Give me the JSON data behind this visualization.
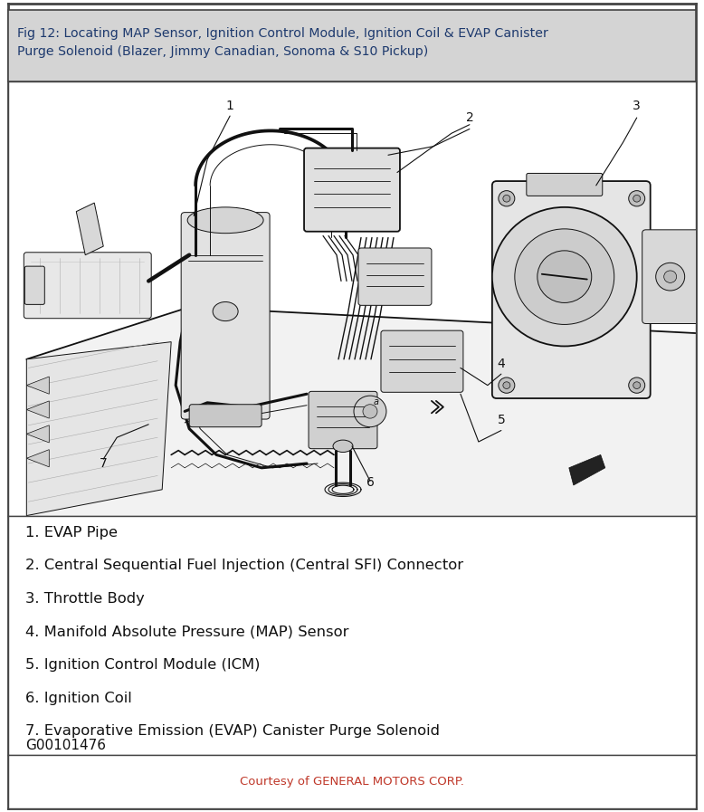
{
  "title_line1": "Fig 12: Locating MAP Sensor, Ignition Control Module, Ignition Coil & EVAP Canister",
  "title_line2": "Purge Solenoid (Blazer, Jimmy Canadian, Sonoma & S10 Pickup)",
  "title_bg": "#d4d4d4",
  "title_color": "#1e3a6e",
  "title_fontsize": 10.2,
  "outer_border_color": "#444444",
  "outer_bg": "#ffffff",
  "diagram_bg": "#ffffff",
  "legend_items": [
    "1. EVAP Pipe",
    "2. Central Sequential Fuel Injection (Central SFI) Connector",
    "3. Throttle Body",
    "4. Manifold Absolute Pressure (MAP) Sensor",
    "5. Ignition Control Module (ICM)",
    "6. Ignition Coil",
    "7. Evaporative Emission (EVAP) Canister Purge Solenoid"
  ],
  "legend_fontsize": 11.8,
  "legend_color": "#111111",
  "figure_id": "G00101476",
  "figure_id_fontsize": 11,
  "figure_id_color": "#111111",
  "courtesy_text": "Courtesy of GENERAL MOTORS CORP.",
  "courtesy_color": "#c0392b",
  "courtesy_fontsize": 9.5,
  "fig_width": 7.78,
  "fig_height": 8.97,
  "dpi": 100
}
